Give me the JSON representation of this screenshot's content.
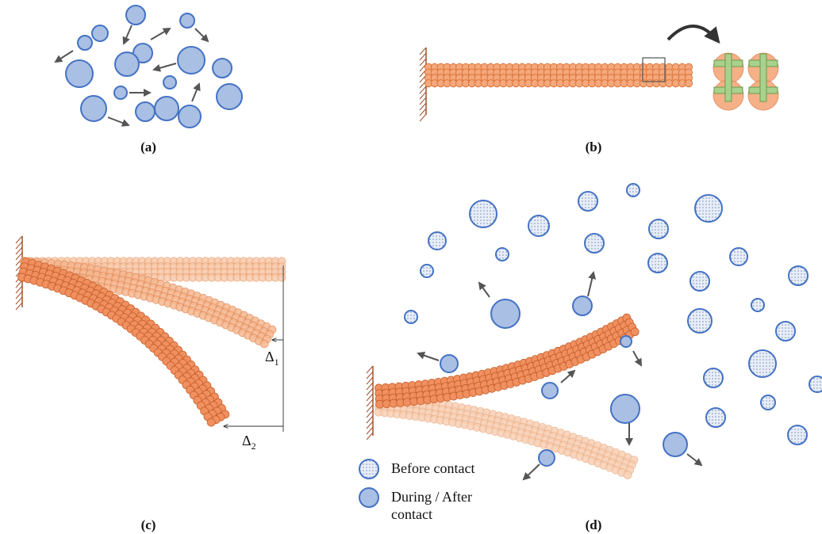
{
  "panels": {
    "a": {
      "label": "(a)"
    },
    "b": {
      "label": "(b)"
    },
    "c": {
      "label": "(c)",
      "delta_1": {
        "symbol": "Δ",
        "subscript": "1"
      },
      "delta_2": {
        "symbol": "Δ",
        "subscript": "2"
      }
    },
    "d": {
      "label": "(d)"
    }
  },
  "legend": {
    "items": [
      {
        "lines": [
          "Before contact"
        ]
      },
      {
        "lines": [
          "During / After",
          "contact"
        ]
      }
    ]
  }
}
